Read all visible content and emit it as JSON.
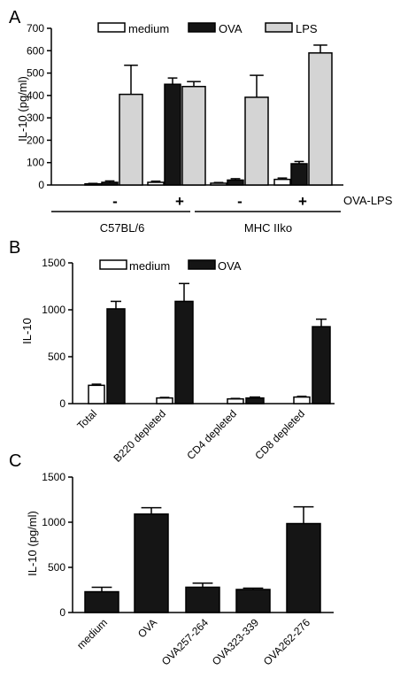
{
  "colors": {
    "medium": "#ffffff",
    "OVA": "#151515",
    "LPS": "#d4d4d4",
    "stroke": "#000000"
  },
  "chart_data": [
    {
      "panel": "A",
      "type": "bar",
      "ylabel": "IL-10 (pg/ml)",
      "ylim": [
        0,
        700
      ],
      "yticks": [
        "0",
        "100",
        "200",
        "300",
        "400",
        "500",
        "600",
        "700"
      ],
      "legend": [
        "medium",
        "OVA",
        "LPS"
      ],
      "treatment_label": "OVA-LPS",
      "groups": [
        {
          "label": "C57BL/6",
          "signs": [
            "-",
            "+"
          ]
        },
        {
          "label": "MHC IIko",
          "signs": [
            "-",
            "+"
          ]
        }
      ],
      "categories": [
        "C57BL/6 -",
        "C57BL/6 +",
        "MHC IIko -",
        "MHC IIko +"
      ],
      "series": [
        {
          "name": "medium",
          "values": [
            5,
            12,
            8,
            25
          ],
          "errors": [
            2,
            5,
            3,
            6
          ]
        },
        {
          "name": "OVA",
          "values": [
            12,
            450,
            22,
            95
          ],
          "errors": [
            6,
            28,
            6,
            10
          ]
        },
        {
          "name": "LPS",
          "values": [
            405,
            440,
            392,
            590
          ],
          "errors": [
            130,
            22,
            98,
            35
          ]
        }
      ]
    },
    {
      "panel": "B",
      "type": "bar",
      "ylabel": "IL-10",
      "ylim": [
        0,
        1500
      ],
      "yticks": [
        "0",
        "500",
        "1000",
        "1500"
      ],
      "legend": [
        "medium",
        "OVA"
      ],
      "categories": [
        "Total",
        "B220 depleted",
        "CD4 depleted",
        "CD8 depleted"
      ],
      "series": [
        {
          "name": "medium",
          "values": [
            195,
            60,
            50,
            70
          ],
          "errors": [
            12,
            6,
            5,
            8
          ]
        },
        {
          "name": "OVA",
          "values": [
            1010,
            1090,
            60,
            820
          ],
          "errors": [
            80,
            190,
            10,
            80
          ]
        }
      ]
    },
    {
      "panel": "C",
      "type": "bar",
      "ylabel": "IL-10 (pg/ml)",
      "ylim": [
        0,
        1500
      ],
      "yticks": [
        "0",
        "500",
        "1000",
        "1500"
      ],
      "categories": [
        "medium",
        "OVA",
        "OVA257-264",
        "OVA323-339",
        "OVA262-276"
      ],
      "values": [
        230,
        1090,
        280,
        255,
        985
      ],
      "errors": [
        50,
        70,
        45,
        15,
        185
      ]
    }
  ]
}
